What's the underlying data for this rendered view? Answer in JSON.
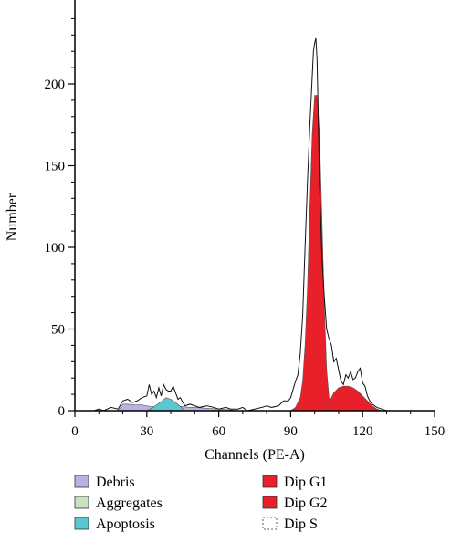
{
  "chart_data": {
    "type": "area",
    "xlabel": "Channels (PE-A)",
    "ylabel": "Number",
    "xlim": [
      0,
      150
    ],
    "ylim": [
      0,
      240
    ],
    "x_ticks": [
      0,
      30,
      60,
      90,
      120,
      150
    ],
    "y_ticks": [
      0,
      50,
      100,
      150,
      200
    ],
    "legend_position": "bottom",
    "histogram": {
      "x": [
        0,
        5,
        8,
        10,
        12,
        15,
        18,
        20,
        22,
        24,
        26,
        28,
        30,
        31,
        32,
        33,
        34,
        35,
        36,
        37,
        38,
        39,
        40,
        41,
        42,
        43,
        44,
        45,
        46,
        48,
        50,
        52,
        55,
        58,
        60,
        63,
        65,
        68,
        70,
        72,
        75,
        78,
        80,
        82,
        85,
        87,
        89,
        90,
        91,
        92,
        93,
        94,
        95,
        96,
        97,
        98,
        99,
        99.5,
        100,
        100.5,
        101,
        101.5,
        102,
        103,
        104,
        105,
        106,
        107,
        108,
        109,
        110,
        111,
        112,
        113,
        114,
        115,
        116,
        117,
        118,
        119,
        120,
        121,
        122,
        123,
        124,
        125,
        126,
        128,
        130,
        135,
        140,
        145,
        150
      ],
      "y": [
        0,
        0,
        0,
        1,
        0,
        2,
        1,
        6,
        7,
        5,
        6,
        8,
        9,
        16,
        10,
        12,
        8,
        14,
        9,
        16,
        13,
        12,
        12,
        15,
        11,
        7,
        8,
        5,
        3,
        4,
        3,
        2,
        3,
        2,
        1,
        2,
        1,
        1,
        2,
        0,
        1,
        2,
        3,
        2,
        3,
        6,
        6,
        8,
        13,
        18,
        22,
        35,
        58,
        100,
        140,
        175,
        205,
        220,
        225,
        228,
        215,
        180,
        140,
        95,
        70,
        50,
        44,
        40,
        30,
        32,
        25,
        18,
        16,
        22,
        20,
        24,
        19,
        20,
        24,
        26,
        17,
        15,
        9,
        6,
        4,
        3,
        2,
        1,
        0,
        0,
        0,
        0,
        0
      ]
    },
    "series": [
      {
        "name": "Debris",
        "color": "#b9b3e3",
        "x": [
          18,
          20,
          22,
          25,
          28,
          30,
          32,
          35,
          38,
          40,
          42,
          45,
          48,
          50,
          55,
          60,
          65,
          68
        ],
        "y": [
          0,
          4,
          4,
          3.5,
          3.5,
          3,
          2.5,
          2.5,
          3,
          3,
          3,
          2.5,
          2,
          2,
          1.5,
          1,
          0.5,
          0
        ]
      },
      {
        "name": "Aggregates",
        "color": "#c9e2c2",
        "x": [
          0,
          150
        ],
        "y": [
          0,
          0
        ]
      },
      {
        "name": "Apoptosis",
        "color": "#5cc6d2",
        "x": [
          30,
          32,
          34,
          36,
          38,
          40,
          42,
          44,
          46
        ],
        "y": [
          0,
          1.5,
          3.5,
          5.5,
          8,
          7,
          5,
          2.5,
          0
        ]
      },
      {
        "name": "Dip G1",
        "color": "#e8202a",
        "x": [
          90,
          92,
          94,
          95,
          96,
          97,
          98,
          99,
          100,
          101,
          102,
          103,
          104,
          105,
          106,
          107,
          108
        ],
        "y": [
          0,
          2,
          8,
          18,
          40,
          75,
          125,
          170,
          193,
          193,
          170,
          120,
          65,
          25,
          8,
          2,
          0
        ]
      },
      {
        "name": "Dip G2",
        "color": "#e8202a",
        "x": [
          104,
          106,
          108,
          110,
          112,
          114,
          116,
          118,
          120,
          122,
          124,
          126,
          128
        ],
        "y": [
          0,
          5,
          11,
          14,
          15,
          15,
          14,
          12,
          9,
          6,
          3,
          1,
          0
        ]
      },
      {
        "name": "Dip S",
        "color": "#ffffff",
        "x": [
          0,
          150
        ],
        "y": [
          0,
          0
        ]
      }
    ]
  }
}
